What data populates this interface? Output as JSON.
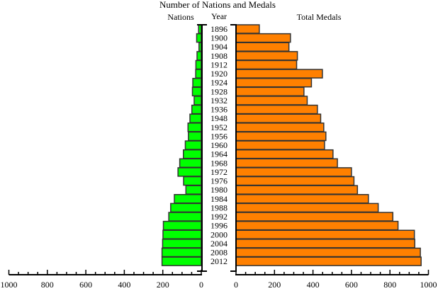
{
  "chart_data": {
    "type": "bar",
    "title": "Number of Nations and Medals",
    "left_label": "Nations",
    "center_label": "Year",
    "right_label": "Total Medals",
    "categories": [
      "1896",
      "1900",
      "1904",
      "1908",
      "1912",
      "1920",
      "1924",
      "1928",
      "1932",
      "1936",
      "1948",
      "1952",
      "1956",
      "1960",
      "1964",
      "1968",
      "1972",
      "1976",
      "1980",
      "1984",
      "1988",
      "1992",
      "1996",
      "2000",
      "2004",
      "2008",
      "2012"
    ],
    "series": [
      {
        "name": "Nations",
        "color": "#00ff00",
        "values": [
          14,
          24,
          12,
          22,
          28,
          29,
          44,
          46,
          37,
          49,
          59,
          69,
          67,
          83,
          93,
          112,
          121,
          92,
          80,
          140,
          159,
          169,
          197,
          199,
          201,
          204,
          204
        ]
      },
      {
        "name": "Total Medals",
        "color": "#ff8000",
        "values": [
          121,
          283,
          275,
          319,
          315,
          449,
          392,
          353,
          370,
          423,
          440,
          456,
          467,
          460,
          504,
          527,
          600,
          613,
          631,
          688,
          739,
          815,
          842,
          927,
          929,
          958,
          962
        ]
      }
    ],
    "left_axis": {
      "range": [
        1000,
        0
      ],
      "ticks": [
        "1000",
        "800",
        "600",
        "400",
        "200",
        "0"
      ]
    },
    "right_axis": {
      "range": [
        0,
        1000
      ],
      "ticks": [
        "0",
        "200",
        "400",
        "600",
        "800",
        "1000"
      ]
    },
    "grid": false
  }
}
